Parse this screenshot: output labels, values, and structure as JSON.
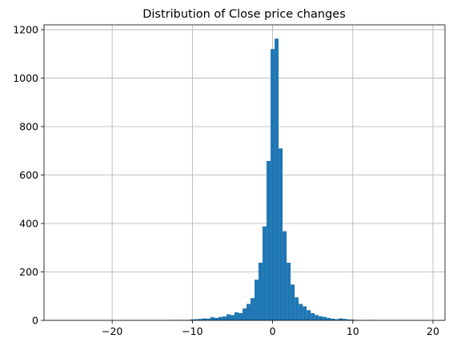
{
  "chart_data": {
    "type": "histogram",
    "title": "Distribution of Close price changes",
    "xlabel": "",
    "ylabel": "",
    "xlim": [
      -28.5,
      21.5
    ],
    "ylim": [
      0,
      1220
    ],
    "grid": true,
    "colors": {
      "bar": "#1f77b4",
      "grid": "#b0b0b0",
      "axis": "#000000"
    },
    "x_ticks": [
      -20,
      -10,
      0,
      10,
      20
    ],
    "x_tick_labels": [
      "−20",
      "−10",
      "0",
      "10",
      "20"
    ],
    "y_ticks": [
      0,
      200,
      400,
      600,
      800,
      1000,
      1200
    ],
    "y_tick_labels": [
      "0",
      "200",
      "400",
      "600",
      "800",
      "1000",
      "1200"
    ],
    "bin_width": 0.5,
    "bins": [
      {
        "x": -12.5,
        "count": 2
      },
      {
        "x": -12.0,
        "count": 1
      },
      {
        "x": -11.5,
        "count": 2
      },
      {
        "x": -11.0,
        "count": 1
      },
      {
        "x": -10.5,
        "count": 2
      },
      {
        "x": -10.0,
        "count": 4
      },
      {
        "x": -9.5,
        "count": 5
      },
      {
        "x": -9.0,
        "count": 6
      },
      {
        "x": -8.5,
        "count": 8
      },
      {
        "x": -8.0,
        "count": 7
      },
      {
        "x": -7.5,
        "count": 13
      },
      {
        "x": -7.0,
        "count": 10
      },
      {
        "x": -6.5,
        "count": 14
      },
      {
        "x": -6.0,
        "count": 16
      },
      {
        "x": -5.5,
        "count": 25
      },
      {
        "x": -5.0,
        "count": 22
      },
      {
        "x": -4.5,
        "count": 33
      },
      {
        "x": -4.0,
        "count": 30
      },
      {
        "x": -3.5,
        "count": 49
      },
      {
        "x": -3.0,
        "count": 68
      },
      {
        "x": -2.5,
        "count": 92
      },
      {
        "x": -2.0,
        "count": 168
      },
      {
        "x": -1.5,
        "count": 238
      },
      {
        "x": -1.0,
        "count": 388
      },
      {
        "x": -0.5,
        "count": 658
      },
      {
        "x": 0.0,
        "count": 1120
      },
      {
        "x": 0.5,
        "count": 1163
      },
      {
        "x": 1.0,
        "count": 710
      },
      {
        "x": 1.5,
        "count": 368
      },
      {
        "x": 2.0,
        "count": 238
      },
      {
        "x": 2.5,
        "count": 148
      },
      {
        "x": 3.0,
        "count": 95
      },
      {
        "x": 3.5,
        "count": 68
      },
      {
        "x": 4.0,
        "count": 58
      },
      {
        "x": 4.5,
        "count": 42
      },
      {
        "x": 5.0,
        "count": 30
      },
      {
        "x": 5.5,
        "count": 22
      },
      {
        "x": 6.0,
        "count": 17
      },
      {
        "x": 6.5,
        "count": 14
      },
      {
        "x": 7.0,
        "count": 10
      },
      {
        "x": 7.5,
        "count": 7
      },
      {
        "x": 8.0,
        "count": 5
      },
      {
        "x": 8.5,
        "count": 8
      },
      {
        "x": 9.0,
        "count": 6
      },
      {
        "x": 9.5,
        "count": 4
      },
      {
        "x": 10.0,
        "count": 3
      },
      {
        "x": 10.5,
        "count": 1
      },
      {
        "x": 11.0,
        "count": 1
      },
      {
        "x": 11.5,
        "count": 1
      },
      {
        "x": 12.0,
        "count": 2
      },
      {
        "x": 12.5,
        "count": 1
      }
    ]
  }
}
